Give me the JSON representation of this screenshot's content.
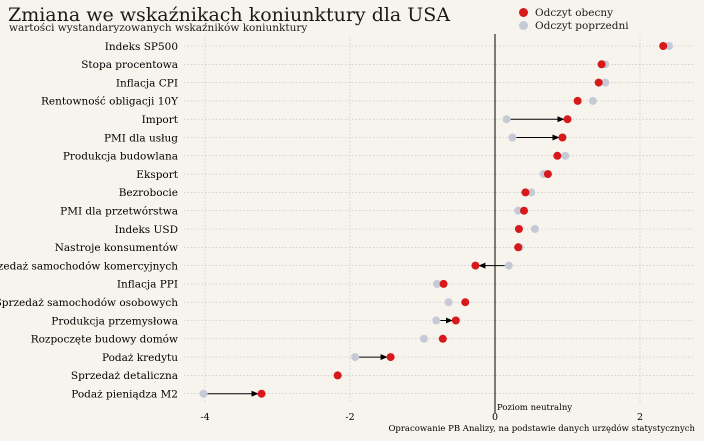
{
  "title": "Zmiana we wskaźnikach koniunktury dla USA",
  "subtitle": "wartości wystandaryzowanych wskaźników koniunktury",
  "legend": {
    "current_label": "Odczyt obecny",
    "previous_label": "Odczyt poprzedni"
  },
  "colors": {
    "current": "#d7191c",
    "previous": "#c5cad6",
    "zero_line": "#000000",
    "grid": "#bdbdbd"
  },
  "annotation": "Poziom neutralny",
  "source": "Opracowanie PB Analizy, na podstawie danych urzędów statystycznych",
  "chart_data": {
    "type": "dot",
    "title": "Zmiana we wskaźnikach koniunktury dla USA",
    "subtitle": "wartości wystandaryzowanych wskaźników koniunktury",
    "xlim": [
      -4.2,
      2.5
    ],
    "x_ticks": [
      -4,
      -2,
      0,
      2
    ],
    "x_tick_labels": [
      "-4",
      "-2",
      "0",
      "2"
    ],
    "grid": true,
    "legend_position": "top-right",
    "categories": [
      "Indeks SP500",
      "Stopa procentowa",
      "Inflacja CPI",
      "Rentowność obligacji 10Y",
      "Import",
      "PMI dla usług",
      "Produkcja budowlana",
      "Eksport",
      "Bezrobocie",
      "PMI dla przetwórstwa",
      "Indeks USD",
      "Nastroje konsumentów",
      "Sprzedaż samochodów komercyjnych",
      "Inflacja PPI",
      "Sprzedaż samochodów osobowych",
      "Produkcja przemysłowa",
      "Rozpoczęte budowy domów",
      "Podaż kredytu",
      "Sprzedaż detaliczna",
      "Podaż pieniądza M2"
    ],
    "series": [
      {
        "name": "Odczyt obecny",
        "values": [
          2.32,
          1.47,
          1.43,
          1.14,
          1.0,
          0.93,
          0.86,
          0.73,
          0.42,
          0.4,
          0.33,
          0.32,
          -0.27,
          -0.71,
          -0.41,
          -0.54,
          -0.72,
          -1.44,
          -2.17,
          -3.22
        ]
      },
      {
        "name": "Odczyt poprzedni",
        "values": [
          2.4,
          1.52,
          1.52,
          1.35,
          0.16,
          0.24,
          0.97,
          0.67,
          0.5,
          0.32,
          0.55,
          0.34,
          0.19,
          -0.8,
          -0.64,
          -0.81,
          -0.98,
          -1.93,
          -2.17,
          -4.02
        ]
      }
    ],
    "arrows": [
      {
        "category": "Import",
        "from": 0.16,
        "to": 1.0
      },
      {
        "category": "PMI dla usług",
        "from": 0.24,
        "to": 0.93
      },
      {
        "category": "Sprzedaż samochodów komercyjnych",
        "from": 0.19,
        "to": -0.27
      },
      {
        "category": "Produkcja przemysłowa",
        "from": -0.81,
        "to": -0.54
      },
      {
        "category": "Podaż kredytu",
        "from": -1.93,
        "to": -1.44
      },
      {
        "category": "Podaż pieniądza M2",
        "from": -4.02,
        "to": -3.22
      }
    ]
  }
}
